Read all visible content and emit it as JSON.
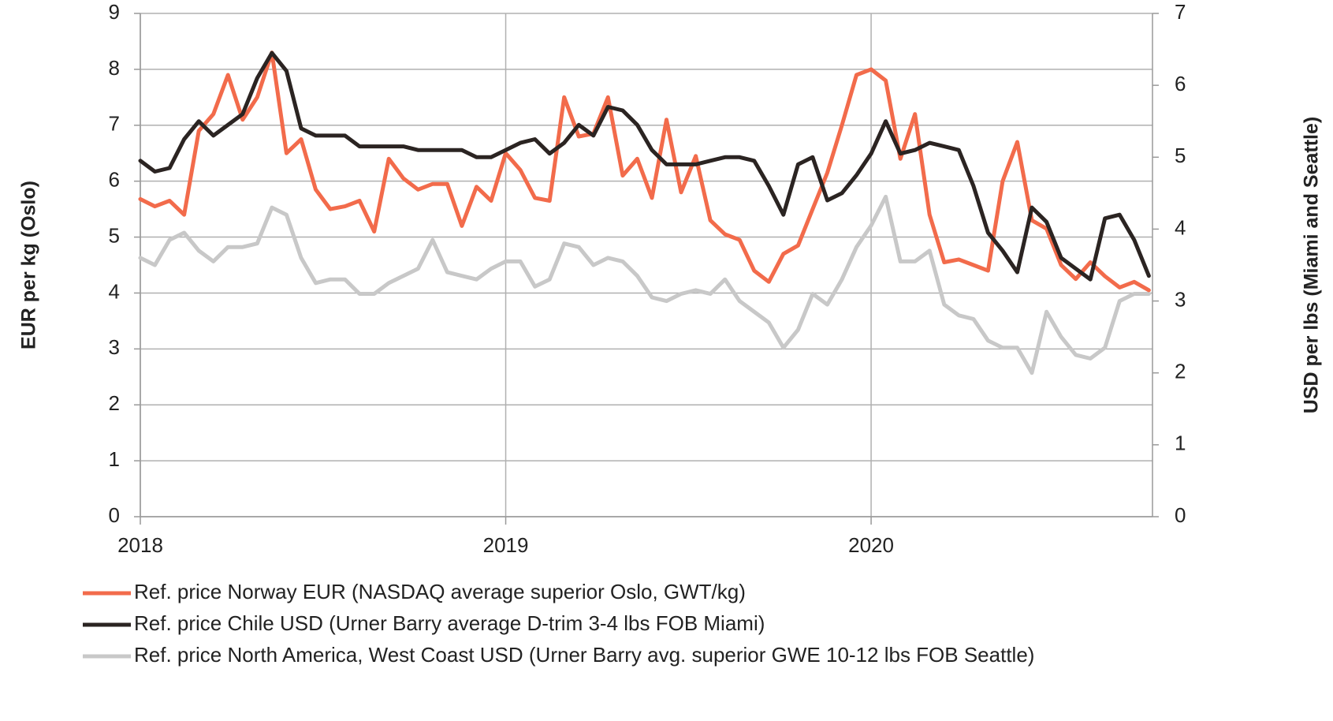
{
  "chart_data": {
    "type": "line",
    "ylabel": "EUR per kg (Oslo)",
    "y2label": "USD per lbs (Miami and Seattle)",
    "x": [
      2018,
      2018.04,
      2018.08,
      2018.12,
      2018.16,
      2018.2,
      2018.24,
      2018.28,
      2018.32,
      2018.36,
      2018.4,
      2018.44,
      2018.48,
      2018.52,
      2018.56,
      2018.6,
      2018.64,
      2018.68,
      2018.72,
      2018.76,
      2018.8,
      2018.84,
      2018.88,
      2018.92,
      2018.96,
      2019,
      2019.04,
      2019.08,
      2019.12,
      2019.16,
      2019.2,
      2019.24,
      2019.28,
      2019.32,
      2019.36,
      2019.4,
      2019.44,
      2019.48,
      2019.52,
      2019.56,
      2019.6,
      2019.64,
      2019.68,
      2019.72,
      2019.76,
      2019.8,
      2019.84,
      2019.88,
      2019.92,
      2019.96,
      2020,
      2020.04,
      2020.08,
      2020.12,
      2020.16,
      2020.2,
      2020.24,
      2020.28,
      2020.32,
      2020.36,
      2020.4,
      2020.44,
      2020.48,
      2020.52,
      2020.56,
      2020.6,
      2020.64,
      2020.68,
      2020.72,
      2020.76
    ],
    "xlim": [
      2018,
      2020.77
    ],
    "xticks": [
      2018,
      2019,
      2020
    ],
    "ylim": [
      0,
      9
    ],
    "yticks": [
      0,
      1,
      2,
      3,
      4,
      5,
      6,
      7,
      8,
      9
    ],
    "y2lim": [
      0,
      7
    ],
    "y2ticks": [
      0,
      1,
      2,
      3,
      4,
      5,
      6,
      7
    ],
    "grid": true,
    "legend": "bottom",
    "series": [
      {
        "name": "Ref. price Norway EUR (NASDAQ average superior Oslo, GWT/kg)",
        "color": "#f26b4b",
        "values": [
          5.68,
          5.55,
          5.65,
          5.4,
          6.9,
          7.2,
          7.9,
          7.1,
          7.5,
          8.3,
          6.5,
          6.75,
          5.85,
          5.5,
          5.55,
          5.65,
          5.1,
          6.4,
          6.05,
          5.85,
          5.95,
          5.95,
          5.2,
          5.9,
          5.65,
          6.5,
          6.2,
          5.7,
          5.65,
          7.5,
          6.8,
          6.85,
          7.5,
          6.1,
          6.4,
          5.7,
          7.1,
          5.8,
          6.45,
          5.3,
          5.05,
          4.95,
          4.4,
          4.2,
          4.7,
          4.85,
          5.5,
          6.15,
          7.0,
          7.9,
          8.0,
          7.8,
          6.4,
          7.2,
          5.4,
          4.55,
          4.6,
          4.5,
          4.4,
          6.0,
          6.7,
          5.3,
          5.15,
          4.5,
          4.25,
          4.55,
          4.3,
          4.1,
          4.2,
          4.05
        ]
      },
      {
        "name": "Ref. price Chile USD (Urner Barry average D-trim 3-4 lbs FOB Miami)",
        "color": "#2b2422",
        "axis": "y2",
        "values": [
          4.95,
          4.8,
          4.85,
          5.25,
          5.5,
          5.3,
          5.45,
          5.6,
          6.1,
          6.45,
          6.2,
          5.4,
          5.3,
          5.3,
          5.3,
          5.15,
          5.15,
          5.15,
          5.15,
          5.1,
          5.1,
          5.1,
          5.1,
          5.0,
          5.0,
          5.1,
          5.2,
          5.25,
          5.05,
          5.2,
          5.45,
          5.3,
          5.7,
          5.65,
          5.45,
          5.1,
          4.9,
          4.9,
          4.9,
          4.95,
          5.0,
          5.0,
          4.95,
          4.6,
          4.2,
          4.9,
          5.0,
          4.4,
          4.5,
          4.75,
          5.05,
          5.5,
          5.05,
          5.1,
          5.2,
          5.15,
          5.1,
          4.6,
          3.95,
          3.7,
          3.4,
          4.3,
          4.1,
          3.6,
          3.45,
          3.3,
          4.15,
          4.2,
          3.85,
          3.35
        ]
      },
      {
        "name": "Ref. price North America, West Coast USD (Urner Barry avg. superior GWE 10-12 lbs FOB Seattle)",
        "color": "#c8c8c8",
        "axis": "y2",
        "values": [
          3.6,
          3.5,
          3.85,
          3.95,
          3.7,
          3.55,
          3.75,
          3.75,
          3.8,
          4.3,
          4.2,
          3.6,
          3.25,
          3.3,
          3.3,
          3.1,
          3.1,
          3.25,
          3.35,
          3.45,
          3.85,
          3.4,
          3.35,
          3.3,
          3.45,
          3.55,
          3.55,
          3.2,
          3.3,
          3.8,
          3.75,
          3.5,
          3.6,
          3.55,
          3.35,
          3.05,
          3.0,
          3.1,
          3.15,
          3.1,
          3.3,
          3.0,
          2.85,
          2.7,
          2.35,
          2.6,
          3.1,
          2.95,
          3.3,
          3.75,
          4.05,
          4.45,
          3.55,
          3.55,
          3.7,
          2.95,
          2.8,
          2.75,
          2.45,
          2.35,
          2.35,
          2.0,
          2.85,
          2.5,
          2.25,
          2.2,
          2.35,
          3.0,
          3.1,
          3.1
        ]
      }
    ]
  }
}
